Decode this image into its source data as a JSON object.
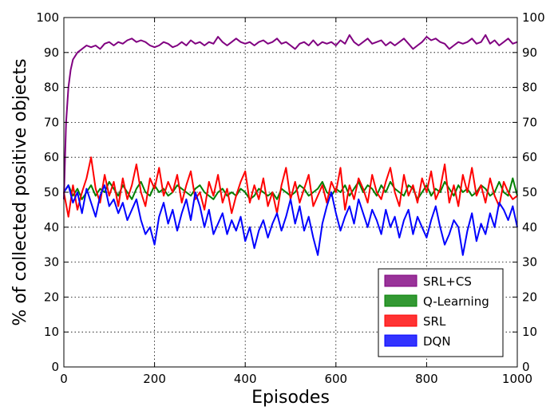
{
  "chart_data": {
    "type": "line",
    "title": "",
    "xlabel": "Episodes",
    "ylabel": "% of collected positive objects",
    "xlim": [
      0,
      1000
    ],
    "ylim": [
      0,
      100
    ],
    "xticks": [
      0,
      200,
      400,
      600,
      800,
      1000
    ],
    "yticks": [
      0,
      10,
      20,
      30,
      40,
      50,
      60,
      70,
      80,
      90,
      100
    ],
    "grid": true,
    "legend": "lower-right",
    "series": [
      {
        "name": "SRL+CS",
        "color": "#800080",
        "x": [
          0,
          5,
          10,
          15,
          20,
          30,
          40,
          50,
          60,
          70,
          80,
          90,
          100,
          110,
          120,
          130,
          140,
          150,
          160,
          170,
          180,
          190,
          200,
          210,
          220,
          230,
          240,
          250,
          260,
          270,
          280,
          290,
          300,
          310,
          320,
          330,
          340,
          350,
          360,
          370,
          380,
          390,
          400,
          410,
          420,
          430,
          440,
          450,
          460,
          470,
          480,
          490,
          500,
          510,
          520,
          530,
          540,
          550,
          560,
          570,
          580,
          590,
          600,
          610,
          620,
          630,
          640,
          650,
          660,
          670,
          680,
          690,
          700,
          710,
          720,
          730,
          740,
          750,
          760,
          770,
          780,
          790,
          800,
          810,
          820,
          830,
          840,
          850,
          860,
          870,
          880,
          890,
          900,
          910,
          920,
          930,
          940,
          950,
          960,
          970,
          980,
          990,
          1000
        ],
        "y": [
          48,
          70,
          80,
          85,
          88,
          90,
          91,
          92,
          91.5,
          92,
          91,
          92.5,
          93,
          92,
          93,
          92.5,
          93.5,
          94,
          93,
          93.5,
          93,
          92,
          91.5,
          92,
          93,
          92.5,
          91.5,
          92,
          93,
          92,
          93.5,
          92.5,
          93,
          92,
          93,
          92.5,
          94.5,
          93,
          92,
          93,
          94,
          93,
          92.5,
          93,
          92,
          93,
          93.5,
          92.5,
          93,
          94,
          92.5,
          93,
          92,
          91,
          92.5,
          93,
          92,
          93.5,
          92,
          93,
          92.5,
          93,
          92,
          93.5,
          92.5,
          95,
          93,
          92,
          93,
          94,
          92.5,
          93,
          93.5,
          92,
          93,
          92,
          93,
          94,
          92.5,
          91,
          92,
          93,
          94.5,
          93.5,
          94,
          93,
          92.5,
          91,
          92,
          93,
          92.5,
          93,
          94,
          92.5,
          93,
          95,
          92.5,
          93.5,
          92,
          93,
          94,
          92.5,
          93
        ]
      },
      {
        "name": "Q-Learning",
        "color": "#008000",
        "x": [
          0,
          10,
          20,
          30,
          40,
          50,
          60,
          70,
          80,
          90,
          100,
          110,
          120,
          130,
          140,
          150,
          160,
          170,
          180,
          190,
          200,
          210,
          220,
          230,
          240,
          250,
          260,
          270,
          280,
          290,
          300,
          310,
          320,
          330,
          340,
          350,
          360,
          370,
          380,
          390,
          400,
          410,
          420,
          430,
          440,
          450,
          460,
          470,
          480,
          490,
          500,
          510,
          520,
          530,
          540,
          550,
          560,
          570,
          580,
          590,
          600,
          610,
          620,
          630,
          640,
          650,
          660,
          670,
          680,
          690,
          700,
          710,
          720,
          730,
          740,
          750,
          760,
          770,
          780,
          790,
          800,
          810,
          820,
          830,
          840,
          850,
          860,
          870,
          880,
          890,
          900,
          910,
          920,
          930,
          940,
          950,
          960,
          970,
          980,
          990,
          1000
        ],
        "y": [
          50,
          52,
          49,
          51,
          48,
          50,
          52,
          49,
          51,
          50,
          53,
          51,
          49,
          52,
          50,
          48,
          51,
          53,
          50,
          49,
          52,
          50,
          51,
          49,
          50,
          52,
          51,
          50,
          49,
          51,
          52,
          50,
          49,
          48,
          50,
          51,
          49,
          50,
          49,
          51,
          50,
          48,
          49,
          51,
          50,
          49,
          50,
          48,
          51,
          50,
          49,
          50,
          52,
          51,
          49,
          50,
          51,
          53,
          50,
          49,
          51,
          50,
          52,
          49,
          51,
          53,
          50,
          52,
          51,
          49,
          52,
          50,
          53,
          51,
          50,
          49,
          52,
          51,
          48,
          50,
          52,
          49,
          51,
          50,
          53,
          51,
          49,
          52,
          50,
          51,
          49,
          50,
          52,
          51,
          49,
          50,
          53,
          50,
          49,
          54,
          49
        ]
      },
      {
        "name": "SRL",
        "color": "#ff0000",
        "x": [
          0,
          10,
          20,
          30,
          40,
          50,
          60,
          70,
          80,
          90,
          100,
          110,
          120,
          130,
          140,
          150,
          160,
          170,
          180,
          190,
          200,
          210,
          220,
          230,
          240,
          250,
          260,
          270,
          280,
          290,
          300,
          310,
          320,
          330,
          340,
          350,
          360,
          370,
          380,
          390,
          400,
          410,
          420,
          430,
          440,
          450,
          460,
          470,
          480,
          490,
          500,
          510,
          520,
          530,
          540,
          550,
          560,
          570,
          580,
          590,
          600,
          610,
          620,
          630,
          640,
          650,
          660,
          670,
          680,
          690,
          700,
          710,
          720,
          730,
          740,
          750,
          760,
          770,
          780,
          790,
          800,
          810,
          820,
          830,
          840,
          850,
          860,
          870,
          880,
          890,
          900,
          910,
          920,
          930,
          940,
          950,
          960,
          970,
          980,
          990,
          1000
        ],
        "y": [
          50,
          43,
          52,
          45,
          50,
          54,
          60,
          51,
          47,
          55,
          49,
          53,
          46,
          54,
          48,
          52,
          58,
          50,
          46,
          54,
          51,
          57,
          49,
          53,
          50,
          55,
          47,
          52,
          56,
          48,
          50,
          45,
          53,
          49,
          55,
          47,
          51,
          44,
          49,
          53,
          56,
          47,
          52,
          48,
          54,
          46,
          50,
          44,
          52,
          57,
          48,
          53,
          47,
          51,
          55,
          46,
          49,
          52,
          47,
          53,
          50,
          57,
          45,
          52,
          48,
          54,
          51,
          47,
          55,
          50,
          48,
          53,
          57,
          50,
          46,
          55,
          49,
          52,
          47,
          54,
          50,
          56,
          48,
          51,
          58,
          47,
          52,
          46,
          55,
          50,
          57,
          49,
          52,
          47,
          54,
          49,
          46,
          53,
          50,
          48,
          49
        ]
      },
      {
        "name": "DQN",
        "color": "#0000ff",
        "x": [
          0,
          10,
          20,
          30,
          40,
          50,
          60,
          70,
          80,
          90,
          100,
          110,
          120,
          130,
          140,
          150,
          160,
          170,
          180,
          190,
          200,
          210,
          220,
          230,
          240,
          250,
          260,
          270,
          280,
          290,
          300,
          310,
          320,
          330,
          340,
          350,
          360,
          370,
          380,
          390,
          400,
          410,
          420,
          430,
          440,
          450,
          460,
          470,
          480,
          490,
          500,
          510,
          520,
          530,
          540,
          550,
          560,
          570,
          580,
          590,
          600,
          610,
          620,
          630,
          640,
          650,
          660,
          670,
          680,
          690,
          700,
          710,
          720,
          730,
          740,
          750,
          760,
          770,
          780,
          790,
          800,
          810,
          820,
          830,
          840,
          850,
          860,
          870,
          880,
          890,
          900,
          910,
          920,
          930,
          940,
          950,
          960,
          970,
          980,
          990,
          1000
        ],
        "y": [
          50,
          52,
          47,
          50,
          44,
          51,
          47,
          43,
          49,
          52,
          46,
          48,
          44,
          47,
          42,
          45,
          48,
          42,
          38,
          40,
          35,
          43,
          47,
          41,
          45,
          39,
          44,
          48,
          42,
          50,
          46,
          40,
          45,
          38,
          41,
          44,
          38,
          42,
          39,
          43,
          36,
          40,
          34,
          39,
          42,
          37,
          41,
          44,
          39,
          43,
          48,
          41,
          46,
          39,
          43,
          37,
          32,
          41,
          46,
          50,
          44,
          39,
          43,
          46,
          41,
          48,
          44,
          40,
          45,
          42,
          38,
          45,
          40,
          43,
          37,
          42,
          45,
          38,
          43,
          40,
          37,
          42,
          46,
          40,
          35,
          38,
          42,
          40,
          32,
          39,
          44,
          36,
          41,
          38,
          44,
          40,
          47,
          45,
          42,
          46,
          40
        ]
      }
    ]
  }
}
